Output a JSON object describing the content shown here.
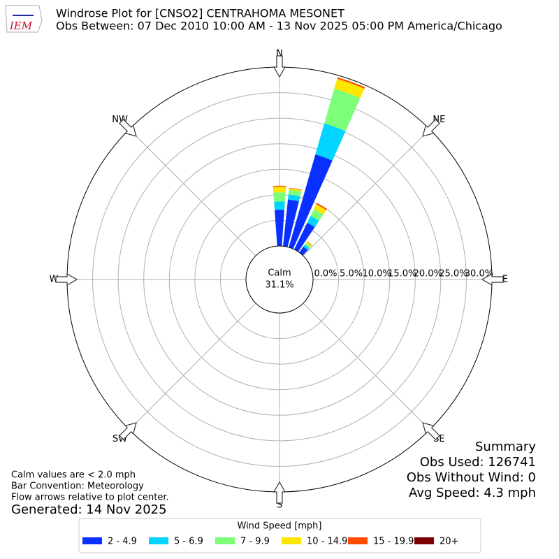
{
  "chart_data": {
    "type": "windrose",
    "logo": "IEM",
    "title": "Windrose Plot for [CNSO2] CENTRAHOMA MESONET",
    "subtitle": "Obs Between: 07 Dec 2010 10:00 AM - 13 Nov 2025 05:00 PM America/Chicago",
    "compass": [
      "N",
      "NE",
      "E",
      "SE",
      "S",
      "SW",
      "W",
      "NW"
    ],
    "calm_label": "Calm",
    "calm_value": 31.1,
    "calm_value_label": "31.1%",
    "x": [
      0,
      10,
      20,
      30,
      40
    ],
    "ylim": [
      0,
      35
    ],
    "yticks": [
      {
        "value": 0,
        "label": "0.0%"
      },
      {
        "value": 5,
        "label": "5.0%"
      },
      {
        "value": 10,
        "label": "10.0%"
      },
      {
        "value": 15,
        "label": "15.0%"
      },
      {
        "value": 20,
        "label": "20.0%"
      },
      {
        "value": 25,
        "label": "25.0%"
      },
      {
        "value": 30,
        "label": "30.0%"
      }
    ],
    "grid": true,
    "legend_title": "Wind Speed [mph]",
    "series": [
      {
        "name": "2 - 4.9",
        "color": "#0a30ff",
        "values": [
          7.1,
          9.2,
          18.9,
          5.8,
          1.4
        ]
      },
      {
        "name": "5 - 6.9",
        "color": "#00d4ff",
        "values": [
          1.6,
          1.0,
          6.3,
          1.5,
          0.5
        ]
      },
      {
        "name": "7 - 9.9",
        "color": "#7dff7a",
        "values": [
          1.8,
          0.9,
          7.1,
          1.5,
          0.4
        ]
      },
      {
        "name": "10 - 14.9",
        "color": "#ffe600",
        "values": [
          1.1,
          0.3,
          2.0,
          1.0,
          0.3
        ]
      },
      {
        "name": "15 - 19.9",
        "color": "#ff4a00",
        "values": [
          0.2,
          0.1,
          0.3,
          0.3,
          0.1
        ]
      },
      {
        "name": "20+",
        "color": "#7f0000",
        "values": [
          0,
          0,
          0,
          0,
          0
        ]
      }
    ],
    "notes": [
      "Calm values are < 2.0 mph",
      "Bar Convention: Meteorology",
      "Flow arrows relative to plot center."
    ],
    "generated": "Generated: 14 Nov 2025",
    "summary": [
      "Summary",
      "Obs Used: 126741",
      "Obs Without Wind: 0",
      "Avg Speed: 4.3 mph"
    ]
  }
}
